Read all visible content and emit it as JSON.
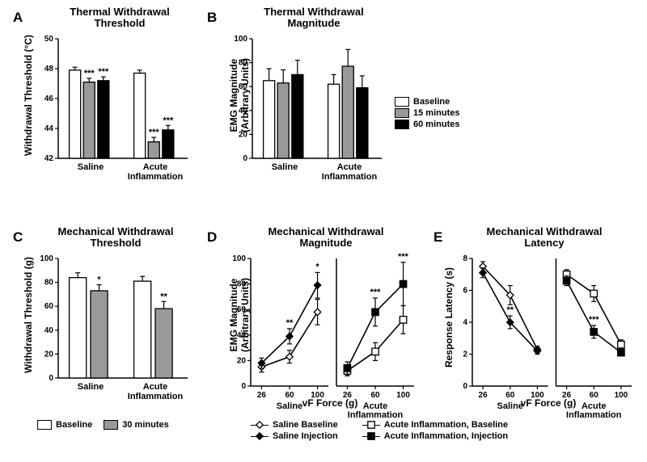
{
  "colors": {
    "bg": "#ffffff",
    "ink": "#000000",
    "white_fill": "#ffffff",
    "gray_fill": "#999999",
    "black_fill": "#000000"
  },
  "fonts": {
    "letter_pt": 17,
    "title_pt": 13,
    "axis_label_pt": 12,
    "tick_pt": 10,
    "legend_pt": 11,
    "group_pt": 11
  },
  "legend_ABC": {
    "items": [
      {
        "label": "Baseline",
        "fill": "#ffffff"
      },
      {
        "label": "15 minutes",
        "fill": "#999999"
      },
      {
        "label": "60 minutes",
        "fill": "#000000"
      }
    ]
  },
  "legend_C": {
    "items": [
      {
        "label": "Baseline",
        "fill": "#ffffff"
      },
      {
        "label": "30 minutes",
        "fill": "#999999"
      }
    ]
  },
  "legend_DE": {
    "left": [
      {
        "label": "Saline Baseline",
        "marker": "diamond",
        "fill": "#ffffff"
      },
      {
        "label": "Saline Injection",
        "marker": "diamond",
        "fill": "#000000"
      }
    ],
    "right": [
      {
        "label": "Acute Inflammation, Baseline",
        "marker": "square",
        "fill": "#ffffff"
      },
      {
        "label": "Acute Inflammation, Injection",
        "marker": "square",
        "fill": "#000000"
      }
    ]
  },
  "panelA": {
    "letter": "A",
    "title": "Thermal Withdrawal\nThreshold",
    "ylabel": "Withdrawal Threshold (°C)",
    "ylim": [
      42,
      50
    ],
    "ytick_step": 2,
    "groups": [
      "Saline",
      "Acute\nInflammation"
    ],
    "series": [
      "Baseline",
      "15 minutes",
      "60 minutes"
    ],
    "values": [
      [
        47.9,
        47.1,
        47.2
      ],
      [
        47.7,
        43.1,
        43.9
      ]
    ],
    "errors": [
      [
        0.2,
        0.25,
        0.25
      ],
      [
        0.2,
        0.3,
        0.3
      ]
    ],
    "sig": [
      [
        null,
        "***",
        "***"
      ],
      [
        null,
        "***",
        "***"
      ]
    ],
    "bar_colors": [
      "#ffffff",
      "#999999",
      "#000000"
    ],
    "bar_stroke": "#000000",
    "bar_width": 0.8
  },
  "panelB": {
    "letter": "B",
    "title": "Thermal Withdrawal\nMagnitude",
    "ylabel": "EMG Magnitude\n(Arbitrary Units)",
    "ylim": [
      0,
      100
    ],
    "ytick_step": 20,
    "groups": [
      "Saline",
      "Acute\nInflammation"
    ],
    "series": [
      "Baseline",
      "15 minutes",
      "60 minutes"
    ],
    "values": [
      [
        65,
        63,
        70
      ],
      [
        62,
        77,
        59
      ]
    ],
    "errors": [
      [
        10,
        11,
        12
      ],
      [
        8,
        14,
        10
      ]
    ],
    "sig": [
      [
        null,
        null,
        null
      ],
      [
        null,
        null,
        null
      ]
    ],
    "bar_colors": [
      "#ffffff",
      "#999999",
      "#000000"
    ],
    "bar_stroke": "#000000",
    "bar_width": 0.8
  },
  "panelC": {
    "letter": "C",
    "title": "Mechanical Withdrawal\nThreshold",
    "ylabel": "Withdrawal Threshold (g)",
    "ylim": [
      0,
      100
    ],
    "ytick_step": 20,
    "groups": [
      "Saline",
      "Acute\nInflammation"
    ],
    "series": [
      "Baseline",
      "30 minutes"
    ],
    "values": [
      [
        84,
        73
      ],
      [
        81,
        58
      ]
    ],
    "errors": [
      [
        4,
        5
      ],
      [
        4,
        6
      ]
    ],
    "sig": [
      [
        null,
        "*"
      ],
      [
        null,
        "**"
      ]
    ],
    "bar_colors": [
      "#ffffff",
      "#999999"
    ],
    "bar_stroke": "#000000",
    "bar_width": 0.8
  },
  "panelD": {
    "letter": "D",
    "title": "Mechanical Withdrawal\nMagnitude",
    "ylabel": "EMG Magnitude\n(Arbitrary Units)",
    "xlabel": "vF Force  (g)",
    "ylim": [
      0,
      100
    ],
    "ytick_step": 20,
    "x_categories": [
      "26",
      "60",
      "100"
    ],
    "subpanels": [
      {
        "label": "Saline",
        "series": [
          {
            "name": "Saline Baseline",
            "marker": "diamond",
            "fill": "#ffffff",
            "y": [
              15,
              23,
              58
            ],
            "err": [
              4,
              5,
              10
            ],
            "sig": [
              null,
              null,
              null
            ]
          },
          {
            "name": "Saline Injection",
            "marker": "diamond",
            "fill": "#000000",
            "y": [
              18,
              39,
              79
            ],
            "err": [
              4,
              6,
              10
            ],
            "sig": [
              null,
              "**",
              "*"
            ]
          }
        ]
      },
      {
        "label": "Acute\nInflammation",
        "series": [
          {
            "name": "Acute Inflammation, Baseline",
            "marker": "square",
            "fill": "#ffffff",
            "y": [
              12,
              27,
              52
            ],
            "err": [
              4,
              7,
              11
            ],
            "sig": [
              null,
              null,
              null
            ]
          },
          {
            "name": "Acute Inflammation, Injection",
            "marker": "square",
            "fill": "#000000",
            "y": [
              14,
              58,
              80
            ],
            "err": [
              5,
              11,
              17
            ],
            "sig": [
              null,
              "***",
              "***"
            ]
          }
        ]
      }
    ]
  },
  "panelE": {
    "letter": "E",
    "title": "Mechanical Withdrawal\nLatency",
    "ylabel": "Response Latency (s)",
    "xlabel": "vF Force  (g)",
    "ylim": [
      0,
      8
    ],
    "ytick_step": 2,
    "x_categories": [
      "26",
      "60",
      "100"
    ],
    "subpanels": [
      {
        "label": "Saline",
        "series": [
          {
            "name": "Saline Baseline",
            "marker": "diamond",
            "fill": "#ffffff",
            "y": [
              7.5,
              5.7,
              2.3
            ],
            "err": [
              0.3,
              0.6,
              0.2
            ],
            "sig": [
              null,
              null,
              null
            ]
          },
          {
            "name": "Saline Injection",
            "marker": "diamond",
            "fill": "#000000",
            "y": [
              7.1,
              4.0,
              2.2
            ],
            "err": [
              0.3,
              0.4,
              0.2
            ],
            "sig": [
              null,
              "**",
              null
            ]
          }
        ]
      },
      {
        "label": "Acute\nInflammation",
        "series": [
          {
            "name": "Acute Inflammation, Baseline",
            "marker": "square",
            "fill": "#ffffff",
            "y": [
              7.0,
              5.8,
              2.6
            ],
            "err": [
              0.3,
              0.5,
              0.3
            ],
            "sig": [
              null,
              null,
              null
            ]
          },
          {
            "name": "Acute Inflammation, Injection",
            "marker": "square",
            "fill": "#000000",
            "y": [
              6.6,
              3.4,
              2.1
            ],
            "err": [
              0.3,
              0.4,
              0.2
            ],
            "sig": [
              null,
              "***",
              null
            ]
          }
        ]
      }
    ]
  }
}
